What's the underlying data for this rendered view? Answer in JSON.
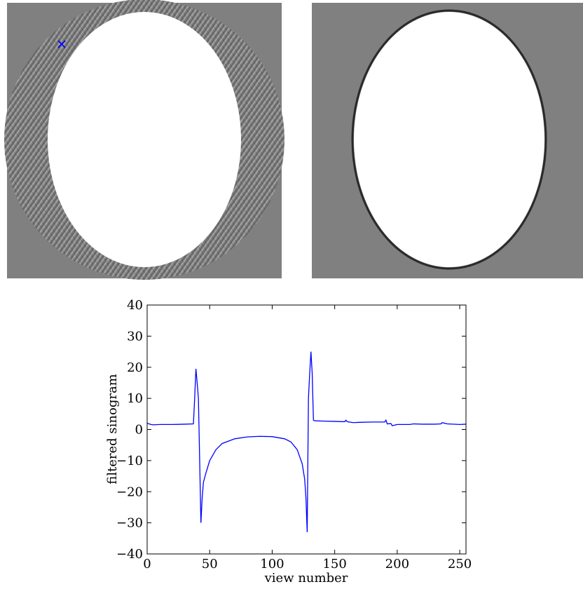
{
  "chart_data": {
    "type": "line",
    "xlabel": "view number",
    "ylabel": "filtered sinogram",
    "xlim": [
      0,
      255
    ],
    "ylim": [
      -40,
      40
    ],
    "xticks": [
      0,
      50,
      100,
      150,
      200,
      250
    ],
    "yticks": [
      {
        "value": -40,
        "label": "−40"
      },
      {
        "value": -30,
        "label": "−30"
      },
      {
        "value": -20,
        "label": "−20"
      },
      {
        "value": -10,
        "label": "−10"
      },
      0,
      10,
      20,
      30,
      40
    ],
    "series": [
      {
        "color": "#0000ff",
        "x": [
          0,
          3,
          5,
          10,
          20,
          30,
          37,
          38,
          39,
          40,
          41,
          42,
          43,
          44,
          45,
          47,
          50,
          55,
          60,
          70,
          80,
          90,
          100,
          110,
          115,
          120,
          124,
          126,
          127,
          128,
          129,
          130,
          131,
          132,
          133,
          134,
          140,
          150,
          158,
          159,
          160,
          165,
          170,
          180,
          190,
          191,
          192,
          195,
          196,
          200,
          210,
          213,
          220,
          230,
          235,
          236,
          240,
          250,
          255
        ],
        "values": [
          2,
          1.6,
          1.5,
          1.6,
          1.6,
          1.7,
          1.8,
          10,
          19.5,
          15,
          10,
          -10,
          -30,
          -22,
          -17,
          -14,
          -10,
          -6.5,
          -4.5,
          -3,
          -2.4,
          -2.2,
          -2.3,
          -3,
          -4,
          -6.5,
          -11,
          -16,
          -22,
          -33,
          10,
          18,
          25,
          18,
          3,
          2.8,
          2.7,
          2.6,
          2.5,
          3,
          2.5,
          2.2,
          2.3,
          2.4,
          2.4,
          3,
          1.8,
          1.9,
          1.2,
          1.6,
          1.6,
          1.8,
          1.7,
          1.7,
          1.8,
          2.2,
          1.8,
          1.6,
          1.7
        ]
      }
    ]
  }
}
